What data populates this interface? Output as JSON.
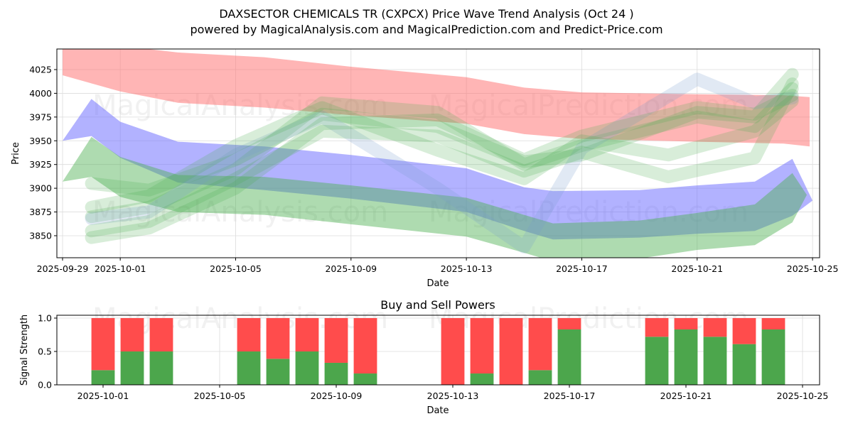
{
  "header": {
    "title": "DAXSECTOR CHEMICALS TR (CXPCX) Price Wave Trend Analysis (Oct 24 )",
    "subtitle": "powered by MagicalAnalysis.com and MagicalPrediction.com and Predict-Price.com"
  },
  "watermarks": {
    "left": "MagicalAnalysis.com",
    "right": "MagicalPrediction.com"
  },
  "colors": {
    "resistance_band": "#ff6b6b",
    "support_band_blue": "#6666ff",
    "support_band_green": "#4caf50",
    "wave_green": "#4caf50",
    "wave_blue": "#7799cc",
    "buy": "#4ca64c",
    "sell": "#ff4c4c"
  },
  "chart_data": [
    {
      "type": "area",
      "title": "DAXSECTOR CHEMICALS TR (CXPCX) Price Wave Trend Analysis (Oct 24 )",
      "xlabel": "Date",
      "ylabel": "Price",
      "x_ticks": [
        "2025-09-29",
        "2025-10-01",
        "2025-10-05",
        "2025-10-09",
        "2025-10-13",
        "2025-10-17",
        "2025-10-21",
        "2025-10-25"
      ],
      "y_ticks": [
        3850,
        3875,
        3900,
        3925,
        3950,
        3975,
        4000,
        4025
      ],
      "xlim": [
        "2025-09-29",
        "2025-10-25"
      ],
      "ylim": [
        3827,
        4047
      ],
      "grid": true,
      "bands": [
        {
          "name": "red-resistance-band",
          "color": "resistance_band",
          "x": [
            "2025-09-29",
            "2025-10-01",
            "2025-10-03",
            "2025-10-06",
            "2025-10-09",
            "2025-10-13",
            "2025-10-15",
            "2025-10-17",
            "2025-10-21",
            "2025-10-24",
            "2025-10-24.9"
          ],
          "upper": [
            4052,
            4050,
            4043,
            4038,
            4028,
            4017,
            4006,
            4001,
            3999,
            3998,
            3996
          ],
          "lower": [
            4019,
            4002,
            3990,
            3985,
            3977,
            3968,
            3957,
            3952,
            3949,
            3947,
            3944
          ]
        },
        {
          "name": "blue-support-band",
          "color": "support_band_blue",
          "x": [
            "2025-09-29",
            "2025-09-30",
            "2025-10-01",
            "2025-10-03",
            "2025-10-06",
            "2025-10-09",
            "2025-10-13",
            "2025-10-15",
            "2025-10-16",
            "2025-10-19",
            "2025-10-21",
            "2025-10-23",
            "2025-10-24.3",
            "2025-10-25"
          ],
          "upper": [
            3950,
            3994,
            3970,
            3949,
            3944,
            3935,
            3921,
            3901,
            3897,
            3898,
            3903,
            3907,
            3931,
            3887
          ],
          "lower": [
            3950,
            3955,
            3932,
            3906,
            3898,
            3889,
            3875,
            3855,
            3846,
            3848,
            3852,
            3855,
            3871,
            3887
          ]
        },
        {
          "name": "teal-support-band",
          "color": "support_band_green",
          "x": [
            "2025-09-29",
            "2025-09-30",
            "2025-10-01",
            "2025-10-03",
            "2025-10-06",
            "2025-10-09",
            "2025-10-13",
            "2025-10-15",
            "2025-10-16",
            "2025-10-19",
            "2025-10-21",
            "2025-10-23",
            "2025-10-24.3",
            "2025-10-24.8"
          ],
          "upper": [
            3907,
            3954,
            3933,
            3914,
            3912,
            3903,
            3890,
            3872,
            3863,
            3866,
            3874,
            3883,
            3916,
            3893
          ],
          "lower": [
            3907,
            3912,
            3891,
            3875,
            3872,
            3862,
            3849,
            3832,
            3823,
            3826,
            3835,
            3840,
            3864,
            3893
          ]
        }
      ],
      "waves": [
        {
          "name": "wave-1",
          "color": "wave_green",
          "x": [
            "2025-09-30",
            "2025-10-02",
            "2025-10-05",
            "2025-10-08",
            "2025-10-12",
            "2025-10-15",
            "2025-10-17",
            "2025-10-21",
            "2025-10-23",
            "2025-10-24.3"
          ],
          "y": [
            3905,
            3898,
            3930,
            3978,
            3965,
            3928,
            3935,
            3980,
            3975,
            4020
          ]
        },
        {
          "name": "wave-2",
          "color": "wave_green",
          "x": [
            "2025-09-30",
            "2025-10-02",
            "2025-10-05",
            "2025-10-08",
            "2025-10-12",
            "2025-10-15",
            "2025-10-17",
            "2025-10-21",
            "2025-10-23",
            "2025-10-24.3"
          ],
          "y": [
            3870,
            3880,
            3920,
            3990,
            3980,
            3925,
            3945,
            3975,
            3965,
            4005
          ]
        },
        {
          "name": "wave-3",
          "color": "wave_blue",
          "x": [
            "2025-09-30",
            "2025-10-02",
            "2025-10-05",
            "2025-10-08",
            "2025-10-12",
            "2025-10-15",
            "2025-10-17",
            "2025-10-21",
            "2025-10-23",
            "2025-10-24.3"
          ],
          "y": [
            3868,
            3875,
            3935,
            3975,
            3900,
            3838,
            3942,
            4015,
            3990,
            3995
          ]
        },
        {
          "name": "wave-4",
          "color": "wave_green",
          "x": [
            "2025-09-30",
            "2025-10-02",
            "2025-10-05",
            "2025-10-08",
            "2025-10-12",
            "2025-10-15",
            "2025-10-17",
            "2025-10-20",
            "2025-10-23",
            "2025-10-24.3"
          ],
          "y": [
            3855,
            3865,
            3910,
            3960,
            3955,
            3918,
            3938,
            3912,
            3932,
            4010
          ]
        },
        {
          "name": "wave-5",
          "color": "wave_green",
          "x": [
            "2025-09-30",
            "2025-10-02",
            "2025-10-05",
            "2025-10-08",
            "2025-10-12",
            "2025-10-15",
            "2025-10-17",
            "2025-10-20",
            "2025-10-23",
            "2025-10-24.3"
          ],
          "y": [
            3880,
            3892,
            3945,
            3985,
            3940,
            3910,
            3950,
            3935,
            3960,
            3992
          ]
        },
        {
          "name": "wave-6",
          "color": "wave_green",
          "x": [
            "2025-09-30",
            "2025-10-02",
            "2025-10-05",
            "2025-10-08",
            "2025-10-12",
            "2025-10-15",
            "2025-10-17",
            "2025-10-21",
            "2025-10-23",
            "2025-10-24.3"
          ],
          "y": [
            3848,
            3858,
            3900,
            3968,
            3972,
            3930,
            3955,
            3985,
            3978,
            3998
          ]
        }
      ]
    },
    {
      "type": "bar",
      "title": "Buy and Sell Powers",
      "xlabel": "Date",
      "ylabel": "Signal Strength",
      "x_ticks": [
        "2025-10-01",
        "2025-10-05",
        "2025-10-09",
        "2025-10-13",
        "2025-10-17",
        "2025-10-21",
        "2025-10-25"
      ],
      "y_ticks": [
        "0.0",
        "0.5",
        "1.0"
      ],
      "ylim": [
        0,
        1.05
      ],
      "grid": true,
      "categories": [
        "2025-10-01",
        "2025-10-02",
        "2025-10-03",
        "2025-10-06",
        "2025-10-07",
        "2025-10-08",
        "2025-10-09",
        "2025-10-10",
        "2025-10-13",
        "2025-10-14",
        "2025-10-15",
        "2025-10-16",
        "2025-10-17",
        "2025-10-20",
        "2025-10-21",
        "2025-10-22",
        "2025-10-23",
        "2025-10-24"
      ],
      "series": [
        {
          "name": "Buy",
          "color": "buy",
          "values": [
            0.22,
            0.5,
            0.5,
            0.5,
            0.39,
            0.5,
            0.33,
            0.17,
            0.0,
            0.17,
            0.0,
            0.22,
            0.83,
            0.72,
            0.83,
            0.72,
            0.61,
            0.83
          ]
        },
        {
          "name": "Sell",
          "color": "sell",
          "values": [
            0.78,
            0.5,
            0.5,
            0.5,
            0.61,
            0.5,
            0.67,
            0.83,
            1.0,
            0.83,
            1.0,
            0.78,
            0.17,
            0.28,
            0.17,
            0.28,
            0.39,
            0.17
          ]
        }
      ]
    }
  ]
}
